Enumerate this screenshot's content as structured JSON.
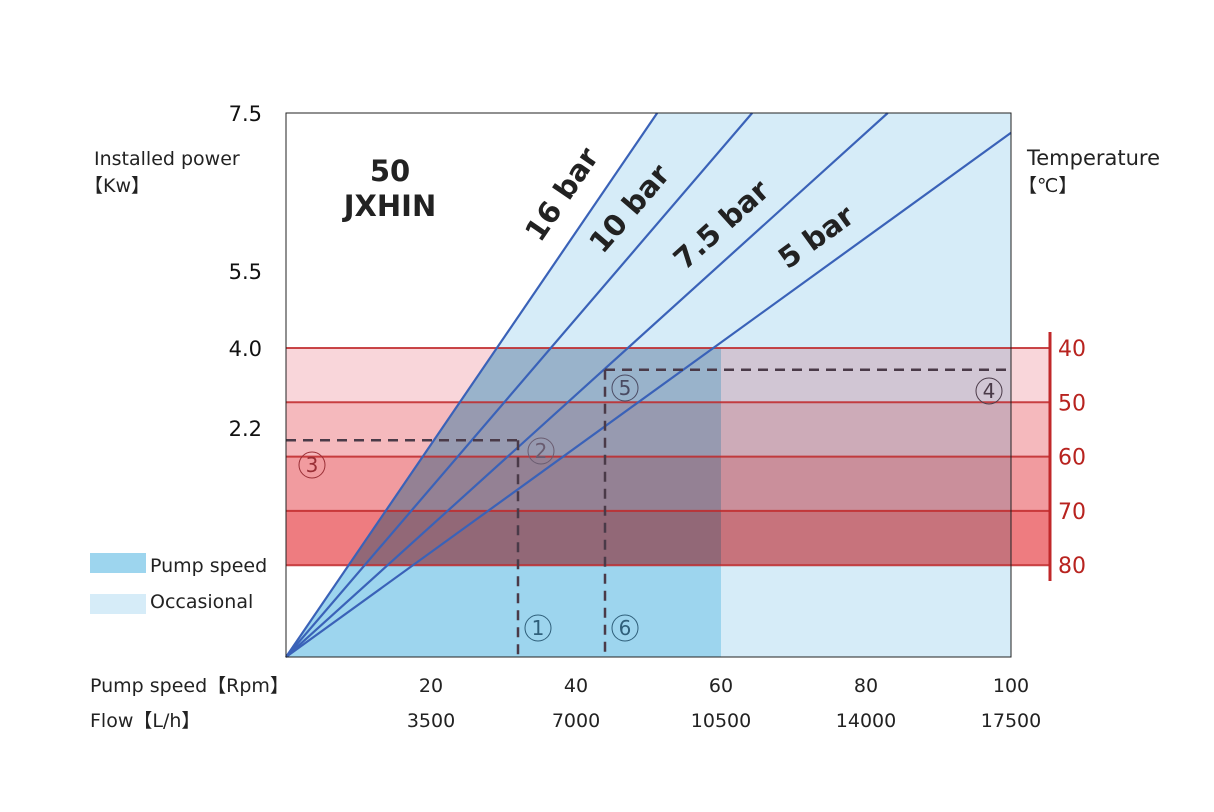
{
  "chart_data": {
    "type": "line",
    "title": "50\nJXHIN",
    "title_lines": [
      "50",
      "JXHIN"
    ],
    "ylabel": "Installed power",
    "ylabel_unit": "【Kw】",
    "y2label": "Temperature",
    "y2label_unit": "【℃】",
    "xlabel_rows": [
      {
        "label": "Pump speed【Rpm】",
        "ticks": [
          "20",
          "40",
          "60",
          "80",
          "100"
        ],
        "values": [
          20,
          40,
          60,
          80,
          100
        ]
      },
      {
        "label": "Flow【L/h】",
        "ticks": [
          "3500",
          "7000",
          "10500",
          "14000",
          "17500"
        ],
        "values": [
          3500,
          7000,
          10500,
          14000,
          17500
        ]
      }
    ],
    "xlim": [
      0,
      100
    ],
    "y_ticks": [
      "7.5",
      "5.5",
      "4.0",
      "2.2"
    ],
    "y_tick_values": [
      7.5,
      5.5,
      4.0,
      2.2
    ],
    "y2_ticks": [
      "40",
      "50",
      "60",
      "70",
      "80"
    ],
    "series": [
      {
        "name": "16 bar",
        "points": [
          [
            0,
            0
          ],
          [
            51.2,
            7.5
          ]
        ]
      },
      {
        "name": "10 bar",
        "points": [
          [
            0,
            0
          ],
          [
            64.3,
            7.5
          ]
        ]
      },
      {
        "name": "7.5 bar",
        "points": [
          [
            0,
            0
          ],
          [
            83,
            7.5
          ]
        ]
      },
      {
        "name": "5 bar",
        "points": [
          [
            0,
            0
          ],
          [
            100,
            7.25
          ]
        ]
      }
    ],
    "regions": {
      "pump_speed": {
        "name": "Pump speed",
        "rpm_max": 60,
        "color": "#9dd5ee"
      },
      "occasional": {
        "name": "Occasional",
        "rpm_max": 100,
        "color": "#d6ecf8"
      }
    },
    "temperature_bands": [
      {
        "from": 40,
        "to": 50,
        "color": "#f9d6da"
      },
      {
        "from": 50,
        "to": 60,
        "color": "#f5b9bd"
      },
      {
        "from": 60,
        "to": 70,
        "color": "#f19b9f"
      },
      {
        "from": 70,
        "to": 80,
        "color": "#ee7c80"
      }
    ],
    "annotations": [
      {
        "label": "①",
        "rpm": 32
      },
      {
        "label": "②",
        "rpm": 32,
        "temperature": 57
      },
      {
        "label": "③",
        "temperature": 57
      },
      {
        "label": "④",
        "temperature": 44
      },
      {
        "label": "⑤",
        "rpm": 44,
        "temperature": 44
      },
      {
        "label": "⑥",
        "rpm": 44
      }
    ],
    "legend": {
      "placement": "bottom-left",
      "entries": [
        "Pump speed",
        "Occasional"
      ]
    },
    "colors": {
      "line": "#3a62b8",
      "band_line": "#c0282a",
      "temp_axis": "#b8231f",
      "dash": "#4a3a48"
    }
  }
}
